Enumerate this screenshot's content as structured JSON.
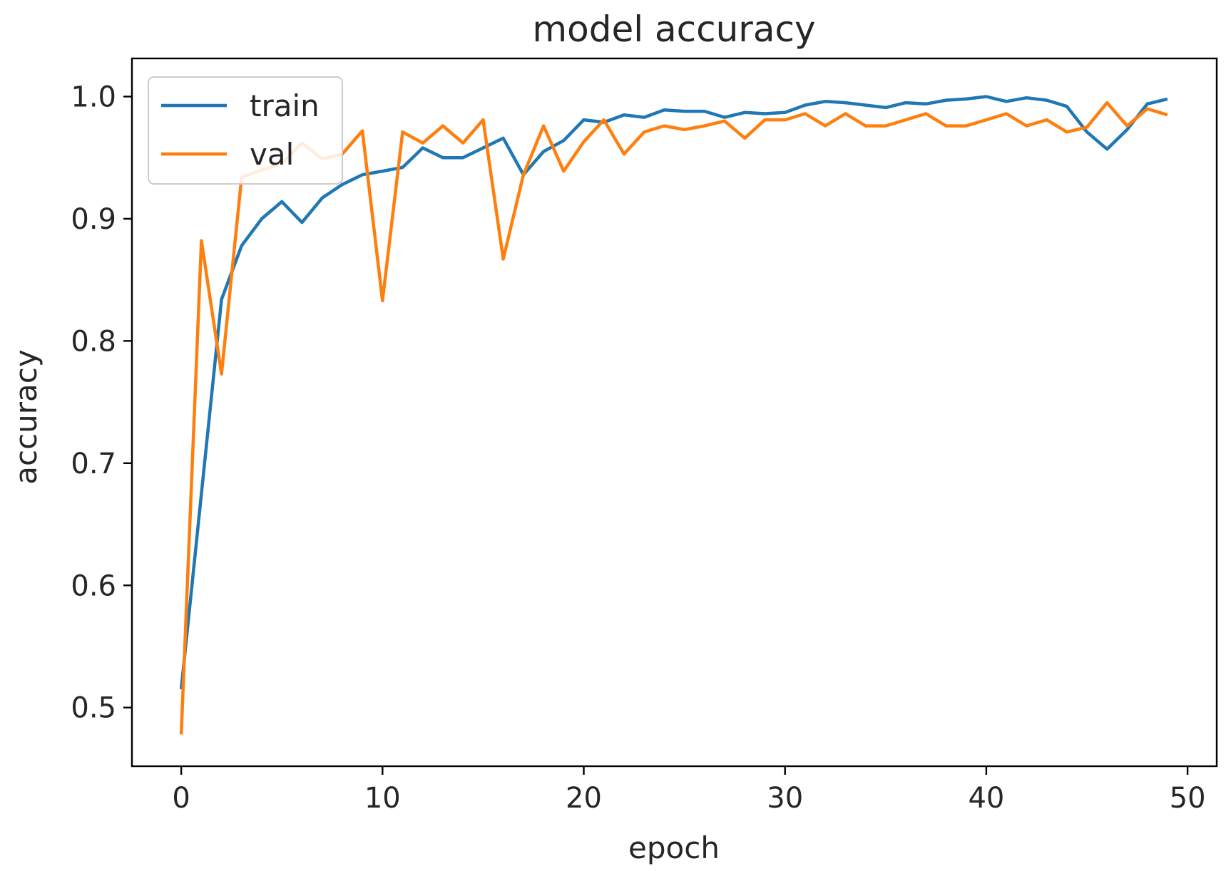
{
  "chart_data": {
    "type": "line",
    "title": "model accuracy",
    "xlabel": "epoch",
    "ylabel": "accuracy",
    "xlim": [
      -2.45,
      51.45
    ],
    "ylim": [
      0.452,
      1.0312
    ],
    "xticks": [
      0,
      10,
      20,
      30,
      40,
      50
    ],
    "xtick_labels": [
      "0",
      "10",
      "20",
      "30",
      "40",
      "50"
    ],
    "yticks": [
      0.5,
      0.6,
      0.7,
      0.8,
      0.9,
      1.0
    ],
    "ytick_labels": [
      "0.5",
      "0.6",
      "0.7",
      "0.8",
      "0.9",
      "1.0"
    ],
    "grid": false,
    "legend_position": "top-left",
    "x": [
      0,
      1,
      2,
      3,
      4,
      5,
      6,
      7,
      8,
      9,
      10,
      11,
      12,
      13,
      14,
      15,
      16,
      17,
      18,
      19,
      20,
      21,
      22,
      23,
      24,
      25,
      26,
      27,
      28,
      29,
      30,
      31,
      32,
      33,
      34,
      35,
      36,
      37,
      38,
      39,
      40,
      41,
      42,
      43,
      44,
      45,
      46,
      47,
      48,
      49
    ],
    "series": [
      {
        "name": "train",
        "color": "#1f77b4",
        "values": [
          0.515,
          0.675,
          0.834,
          0.878,
          0.9,
          0.914,
          0.897,
          0.917,
          0.928,
          0.936,
          0.939,
          0.942,
          0.958,
          0.95,
          0.95,
          0.958,
          0.966,
          0.936,
          0.955,
          0.964,
          0.981,
          0.979,
          0.985,
          0.983,
          0.989,
          0.988,
          0.988,
          0.983,
          0.987,
          0.986,
          0.987,
          0.993,
          0.996,
          0.995,
          0.993,
          0.991,
          0.995,
          0.994,
          0.997,
          0.998,
          1.0,
          0.996,
          0.999,
          0.997,
          0.992,
          0.971,
          0.957,
          0.973,
          0.994,
          0.998
        ]
      },
      {
        "name": "val",
        "color": "#ff7f0e",
        "values": [
          0.478,
          0.882,
          0.773,
          0.934,
          0.94,
          0.945,
          0.962,
          0.949,
          0.953,
          0.972,
          0.833,
          0.971,
          0.962,
          0.976,
          0.962,
          0.981,
          0.867,
          0.936,
          0.976,
          0.939,
          0.963,
          0.981,
          0.953,
          0.971,
          0.976,
          0.973,
          0.976,
          0.98,
          0.966,
          0.981,
          0.981,
          0.986,
          0.976,
          0.986,
          0.976,
          0.976,
          0.981,
          0.986,
          0.976,
          0.976,
          0.981,
          0.986,
          0.976,
          0.981,
          0.971,
          0.975,
          0.995,
          0.976,
          0.99,
          0.985
        ]
      }
    ]
  }
}
